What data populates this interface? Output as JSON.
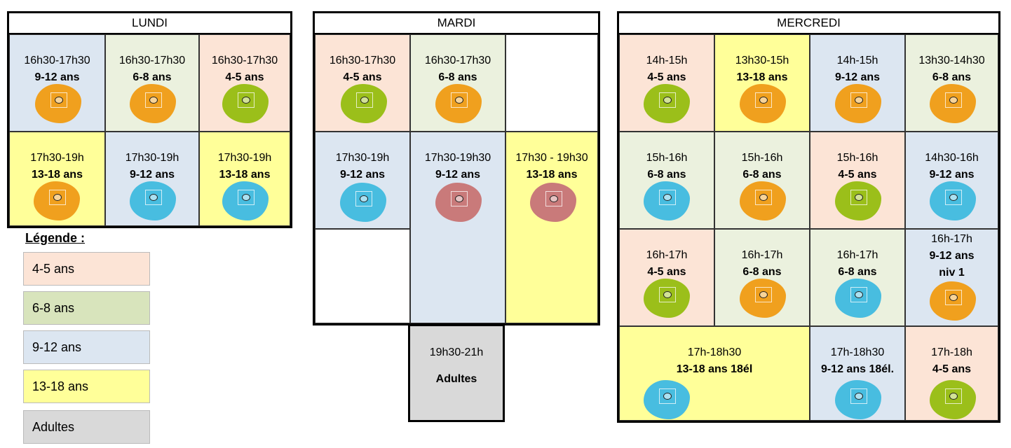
{
  "days": {
    "lundi": "LUNDI",
    "mardi": "MARDI",
    "mercredi": "MERCREDI"
  },
  "lundi": {
    "c1": {
      "time": "16h30-17h30",
      "age": "9-12 ans",
      "icon": "orange-mascot-icon"
    },
    "c2": {
      "time": "16h30-17h30",
      "age": "6-8 ans",
      "icon": "orange-mascot-icon"
    },
    "c3": {
      "time": "16h30-17h30",
      "age": "4-5 ans",
      "icon": "green-mascot-icon"
    },
    "c4": {
      "time": "17h30-19h",
      "age": "13-18 ans",
      "icon": "orange-mascot-icon"
    },
    "c5": {
      "time": "17h30-19h",
      "age": "9-12 ans",
      "icon": "blue-mascot-icon"
    },
    "c6": {
      "time": "17h30-19h",
      "age": "13-18 ans",
      "icon": "blue-mascot-icon"
    }
  },
  "mardi": {
    "c1": {
      "time": "16h30-17h30",
      "age": "4-5 ans",
      "icon": "green-mascot-icon"
    },
    "c2": {
      "time": "16h30-17h30",
      "age": "6-8 ans",
      "icon": "orange-mascot-icon"
    },
    "c3": {
      "time": "17h30-19h",
      "age": "9-12 ans",
      "icon": "blue-mascot-icon"
    },
    "c4": {
      "time": "17h30-19h30",
      "age": "9-12 ans",
      "icon": "red-mascot-icon"
    },
    "c5": {
      "time": "17h30 - 19h30",
      "age": "13-18 ans",
      "icon": "red-mascot-icon"
    },
    "adultes": {
      "time": "19h30-21h",
      "label": "Adultes"
    }
  },
  "mercredi": {
    "c1": {
      "time": "14h-15h",
      "age": "4-5 ans",
      "icon": "green-mascot-icon"
    },
    "c2": {
      "time": "13h30-15h",
      "age": "13-18 ans",
      "icon": "orange-mascot-icon"
    },
    "c3": {
      "time": "14h-15h",
      "age": "9-12 ans",
      "icon": "orange-mascot-icon"
    },
    "c4": {
      "time": "13h30-14h30",
      "age": "6-8 ans",
      "icon": "orange-mascot-icon"
    },
    "c5": {
      "time": "15h-16h",
      "age": "6-8 ans",
      "icon": "blue-mascot-icon"
    },
    "c6": {
      "time": "15h-16h",
      "age": "6-8 ans",
      "icon": "orange-mascot-icon"
    },
    "c7": {
      "time": "15h-16h",
      "age": "4-5 ans",
      "icon": "green-mascot-icon"
    },
    "c8": {
      "time": "14h30-16h",
      "age": "9-12 ans",
      "icon": "blue-mascot-icon"
    },
    "c9": {
      "time": "16h-17h",
      "age": "4-5 ans",
      "icon": "green-mascot-icon"
    },
    "c10": {
      "time": "16h-17h",
      "age": "6-8 ans",
      "icon": "orange-mascot-icon"
    },
    "c11": {
      "time": "16h-17h",
      "age": "6-8 ans",
      "icon": "blue-mascot-icon"
    },
    "c12": {
      "time": "16h-17h",
      "age": "9-12 ans",
      "level": "niv 1",
      "icon": "orange-mascot-icon"
    },
    "c13": {
      "time": "17h-18h30",
      "age": "13-18 ans 18él",
      "icon": "blue-mascot-icon"
    },
    "c14": {
      "time": "17h-18h30",
      "age": "9-12 ans 18él.",
      "icon": "blue-mascot-icon"
    },
    "c15": {
      "time": "17h-18h",
      "age": "4-5 ans",
      "icon": "green-mascot-icon"
    }
  },
  "legend": {
    "title": "Légende :",
    "items": [
      "4-5 ans",
      "6-8 ans",
      "9-12 ans",
      "13-18 ans",
      "Adultes"
    ]
  },
  "colors": {
    "age_4_5": "#fce4d6",
    "age_6_8": "#ebf1de",
    "age_9_12": "#dce6f1",
    "age_13_18": "#ffff99",
    "adultes": "#d9d9d9",
    "mascot_orange": "#f0a01e",
    "mascot_green": "#9bbf1a",
    "mascot_blue": "#48bde0",
    "mascot_red": "#c97a7a"
  }
}
